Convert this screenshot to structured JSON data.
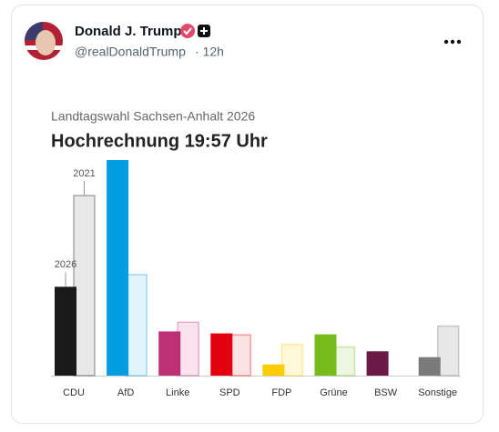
{
  "post": {
    "author": "Donald J. Trump",
    "handle": "@realDonaldTrump",
    "time": "· 12h"
  },
  "chart_data": {
    "type": "bar",
    "subtitle": "Landtagswahl Sachsen-Anhalt 2026",
    "title": "Hochrechnung 19:57 Uhr",
    "categories": [
      "CDU",
      "AfD",
      "Linke",
      "SPD",
      "FDP",
      "Grüne",
      "BSW",
      "Sonstige"
    ],
    "series": [
      {
        "name": "2021",
        "color": [
          "#e8e8e8",
          "#e0f3fb",
          "#f9e3ee",
          "#fbe1e1",
          "#fff8d6",
          "#edf6e3",
          "#f1e5ec",
          "#e8e8e8"
        ],
        "values": [
          37.1,
          20.8,
          11.0,
          8.4,
          6.4,
          5.9,
          0,
          10.2
        ]
      },
      {
        "name": "2026",
        "color": [
          "#1a1a1a",
          "#009ee0",
          "#be3075",
          "#e3000f",
          "#ffcc00",
          "#78bc1b",
          "#6b1a45",
          "#7a7a7a"
        ],
        "values": [
          18.3,
          44.4,
          9.1,
          8.7,
          2.3,
          8.5,
          5.0,
          3.8
        ]
      }
    ]
  }
}
